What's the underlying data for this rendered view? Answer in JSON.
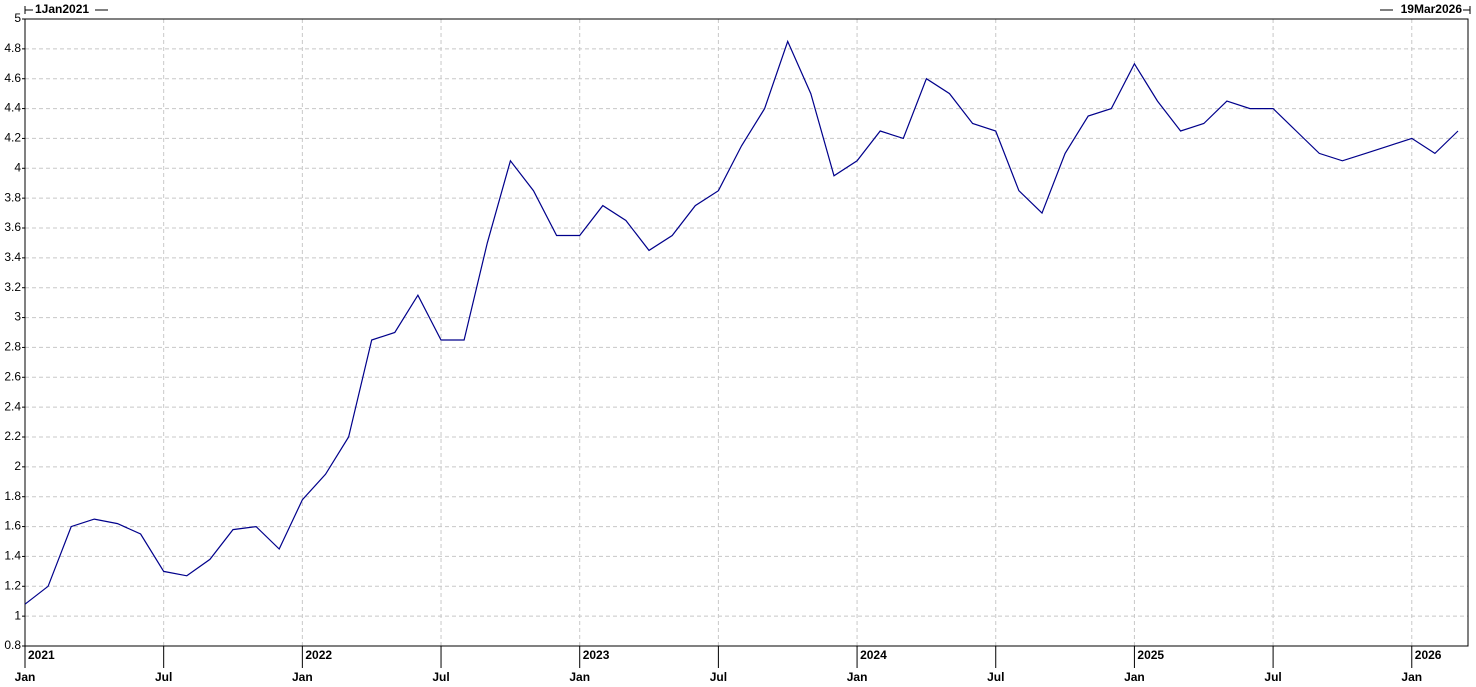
{
  "chart_data": {
    "type": "line",
    "range_start": "1Jan2021",
    "range_end": "19Mar2026",
    "x": [
      "2021-01",
      "2021-02",
      "2021-03",
      "2021-04",
      "2021-05",
      "2021-06",
      "2021-07",
      "2021-08",
      "2021-09",
      "2021-10",
      "2021-11",
      "2021-12",
      "2022-01",
      "2022-02",
      "2022-03",
      "2022-04",
      "2022-05",
      "2022-06",
      "2022-07",
      "2022-08",
      "2022-09",
      "2022-10",
      "2022-11",
      "2022-12",
      "2023-01",
      "2023-02",
      "2023-03",
      "2023-04",
      "2023-05",
      "2023-06",
      "2023-07",
      "2023-08",
      "2023-09",
      "2023-10",
      "2023-11",
      "2023-12",
      "2024-01",
      "2024-02",
      "2024-03",
      "2024-04",
      "2024-05",
      "2024-06",
      "2024-07",
      "2024-08",
      "2024-09",
      "2024-10",
      "2024-11",
      "2024-12",
      "2025-01",
      "2025-02",
      "2025-03",
      "2025-04",
      "2025-05",
      "2025-06",
      "2025-07",
      "2025-08",
      "2025-09",
      "2025-10",
      "2025-11",
      "2025-12",
      "2026-01",
      "2026-02",
      "2026-03"
    ],
    "values": [
      1.08,
      1.2,
      1.6,
      1.65,
      1.62,
      1.55,
      1.3,
      1.27,
      1.38,
      1.58,
      1.6,
      1.45,
      1.78,
      1.95,
      2.2,
      2.85,
      2.9,
      3.15,
      2.85,
      2.85,
      3.5,
      4.05,
      3.85,
      3.55,
      3.55,
      3.75,
      3.65,
      3.45,
      3.55,
      3.75,
      3.85,
      4.15,
      4.4,
      4.85,
      4.5,
      3.95,
      4.05,
      4.25,
      4.2,
      4.6,
      4.5,
      4.3,
      4.25,
      3.85,
      3.7,
      4.1,
      4.35,
      4.4,
      4.7,
      4.45,
      4.25,
      4.3,
      4.45,
      4.4,
      4.4,
      4.25,
      4.1,
      4.05,
      4.1,
      4.15,
      4.2,
      4.1,
      4.25
    ],
    "color": "#00008b",
    "xlim": [
      "2021-01",
      "2026-03"
    ],
    "xticks": [
      {
        "value": "2021-01",
        "label": "Jan"
      },
      {
        "value": "2021-07",
        "label": "Jul"
      },
      {
        "value": "2022-01",
        "label": "Jan"
      },
      {
        "value": "2022-07",
        "label": "Jul"
      },
      {
        "value": "2023-01",
        "label": "Jan"
      },
      {
        "value": "2023-07",
        "label": "Jul"
      },
      {
        "value": "2024-01",
        "label": "Jan"
      },
      {
        "value": "2024-07",
        "label": "Jul"
      },
      {
        "value": "2025-01",
        "label": "Jan"
      },
      {
        "value": "2025-07",
        "label": "Jul"
      },
      {
        "value": "2026-01",
        "label": "Jan"
      }
    ],
    "year_labels": [
      {
        "value": "2021-01",
        "label": "2021"
      },
      {
        "value": "2022-01",
        "label": "2022"
      },
      {
        "value": "2023-01",
        "label": "2023"
      },
      {
        "value": "2024-01",
        "label": "2024"
      },
      {
        "value": "2025-01",
        "label": "2025"
      },
      {
        "value": "2026-01",
        "label": "2026"
      }
    ],
    "ylim": [
      0.8,
      5
    ],
    "yticks": [
      0.8,
      1,
      1.2,
      1.4,
      1.6,
      1.8,
      2,
      2.2,
      2.4,
      2.6,
      2.8,
      3,
      3.2,
      3.4,
      3.6,
      3.8,
      4,
      4.2,
      4.4,
      4.6,
      4.8,
      5
    ],
    "grid": true
  }
}
